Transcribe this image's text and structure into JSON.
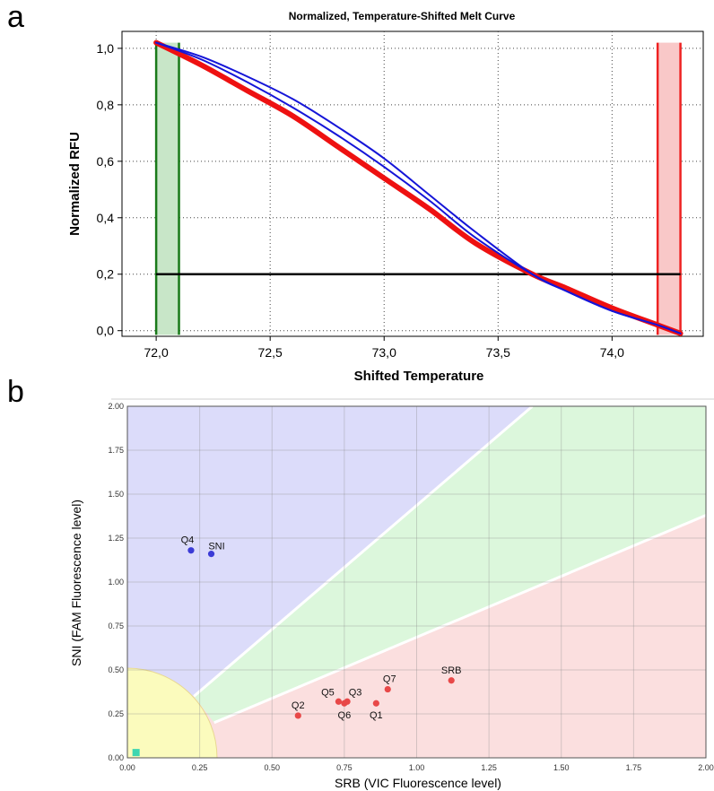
{
  "panel_labels": {
    "a": "a",
    "b": "b"
  },
  "chart_data": [
    {
      "type": "line",
      "title": "Normalized, Temperature-Shifted Melt Curve",
      "xlabel": "Shifted Temperature",
      "ylabel": "Normalized RFU",
      "xlim": [
        71.85,
        74.4
      ],
      "ylim": [
        -0.02,
        1.06
      ],
      "x_ticks": [
        "72,0",
        "72,5",
        "73,0",
        "73,5",
        "74,0"
      ],
      "x_tick_values": [
        72.0,
        72.5,
        73.0,
        73.5,
        74.0
      ],
      "y_ticks": [
        "1,0",
        "0,8",
        "0,6",
        "0,4",
        "0,2",
        "0,0"
      ],
      "y_tick_values": [
        1.0,
        0.8,
        0.6,
        0.4,
        0.2,
        0.0
      ],
      "grid": true,
      "threshold": 0.2,
      "threshold_range": [
        72.0,
        74.3
      ],
      "regions": [
        {
          "name": "pre-melt",
          "x_range": [
            72.0,
            72.1
          ],
          "color": "#1a7a1a",
          "fill": "#c8e6c8"
        },
        {
          "name": "post-melt",
          "x_range": [
            74.2,
            74.3
          ],
          "color": "#ee2222",
          "fill": "#f9c8c8"
        }
      ],
      "series": [
        {
          "color": "#1515d8",
          "width": 2,
          "x": [
            72.0,
            72.2,
            72.4,
            72.6,
            72.8,
            73.0,
            73.2,
            73.4,
            73.65,
            73.8,
            74.0,
            74.2,
            74.3
          ],
          "y": [
            1.02,
            0.97,
            0.9,
            0.82,
            0.72,
            0.61,
            0.48,
            0.35,
            0.2,
            0.14,
            0.07,
            0.02,
            -0.01
          ]
        },
        {
          "color": "#1515d8",
          "width": 2,
          "x": [
            72.0,
            72.2,
            72.4,
            72.6,
            72.8,
            73.0,
            73.2,
            73.4,
            73.65,
            73.8,
            74.0,
            74.2,
            74.3
          ],
          "y": [
            1.02,
            0.96,
            0.88,
            0.79,
            0.69,
            0.58,
            0.46,
            0.33,
            0.2,
            0.14,
            0.07,
            0.02,
            -0.01
          ]
        },
        {
          "color": "#ee1111",
          "width": 6,
          "x": [
            72.0,
            72.2,
            72.4,
            72.6,
            72.8,
            73.0,
            73.2,
            73.4,
            73.65,
            73.8,
            74.0,
            74.2,
            74.3
          ],
          "y": [
            1.02,
            0.94,
            0.85,
            0.76,
            0.65,
            0.54,
            0.43,
            0.31,
            0.2,
            0.15,
            0.08,
            0.02,
            -0.01
          ]
        }
      ]
    },
    {
      "type": "scatter",
      "xlabel": "SRB  (VIC Fluorescence level)",
      "ylabel": "SNI  (FAM Fluorescence level)",
      "xlim": [
        0,
        2.0
      ],
      "ylim": [
        0,
        2.0
      ],
      "x_ticks": [
        "0.00",
        "0.25",
        "0.50",
        "0.75",
        "1.00",
        "1.25",
        "1.50",
        "1.75",
        "2.00"
      ],
      "y_ticks": [
        "0.00",
        "0.25",
        "0.50",
        "0.75",
        "1.00",
        "1.25",
        "1.50",
        "1.75",
        "2.00"
      ],
      "grid": true,
      "regions": [
        {
          "name": "blue",
          "color": "#dcdcfa"
        },
        {
          "name": "green",
          "color": "#dcf7dc"
        },
        {
          "name": "red",
          "color": "#fbdfdf"
        },
        {
          "name": "yellow",
          "color": "#fbfbbd"
        }
      ],
      "points": [
        {
          "label": "Q4",
          "x": 0.22,
          "y": 1.18,
          "color": "#3b3bd6"
        },
        {
          "label": "SNI",
          "x": 0.29,
          "y": 1.16,
          "color": "#3b3bd6"
        },
        {
          "label": "SRB",
          "x": 1.12,
          "y": 0.44,
          "color": "#e84848"
        },
        {
          "label": "Q7",
          "x": 0.9,
          "y": 0.39,
          "color": "#e84848"
        },
        {
          "label": "Q5",
          "x": 0.73,
          "y": 0.32,
          "color": "#e84848"
        },
        {
          "label": "Q3",
          "x": 0.76,
          "y": 0.32,
          "color": "#e84848"
        },
        {
          "label": "Q6",
          "x": 0.75,
          "y": 0.31,
          "color": "#e84848"
        },
        {
          "label": "Q1",
          "x": 0.86,
          "y": 0.31,
          "color": "#e84848"
        },
        {
          "label": "Q2",
          "x": 0.59,
          "y": 0.24,
          "color": "#e84848"
        },
        {
          "label": "",
          "x": 0.03,
          "y": 0.03,
          "color": "#3ed6b0"
        }
      ]
    }
  ]
}
